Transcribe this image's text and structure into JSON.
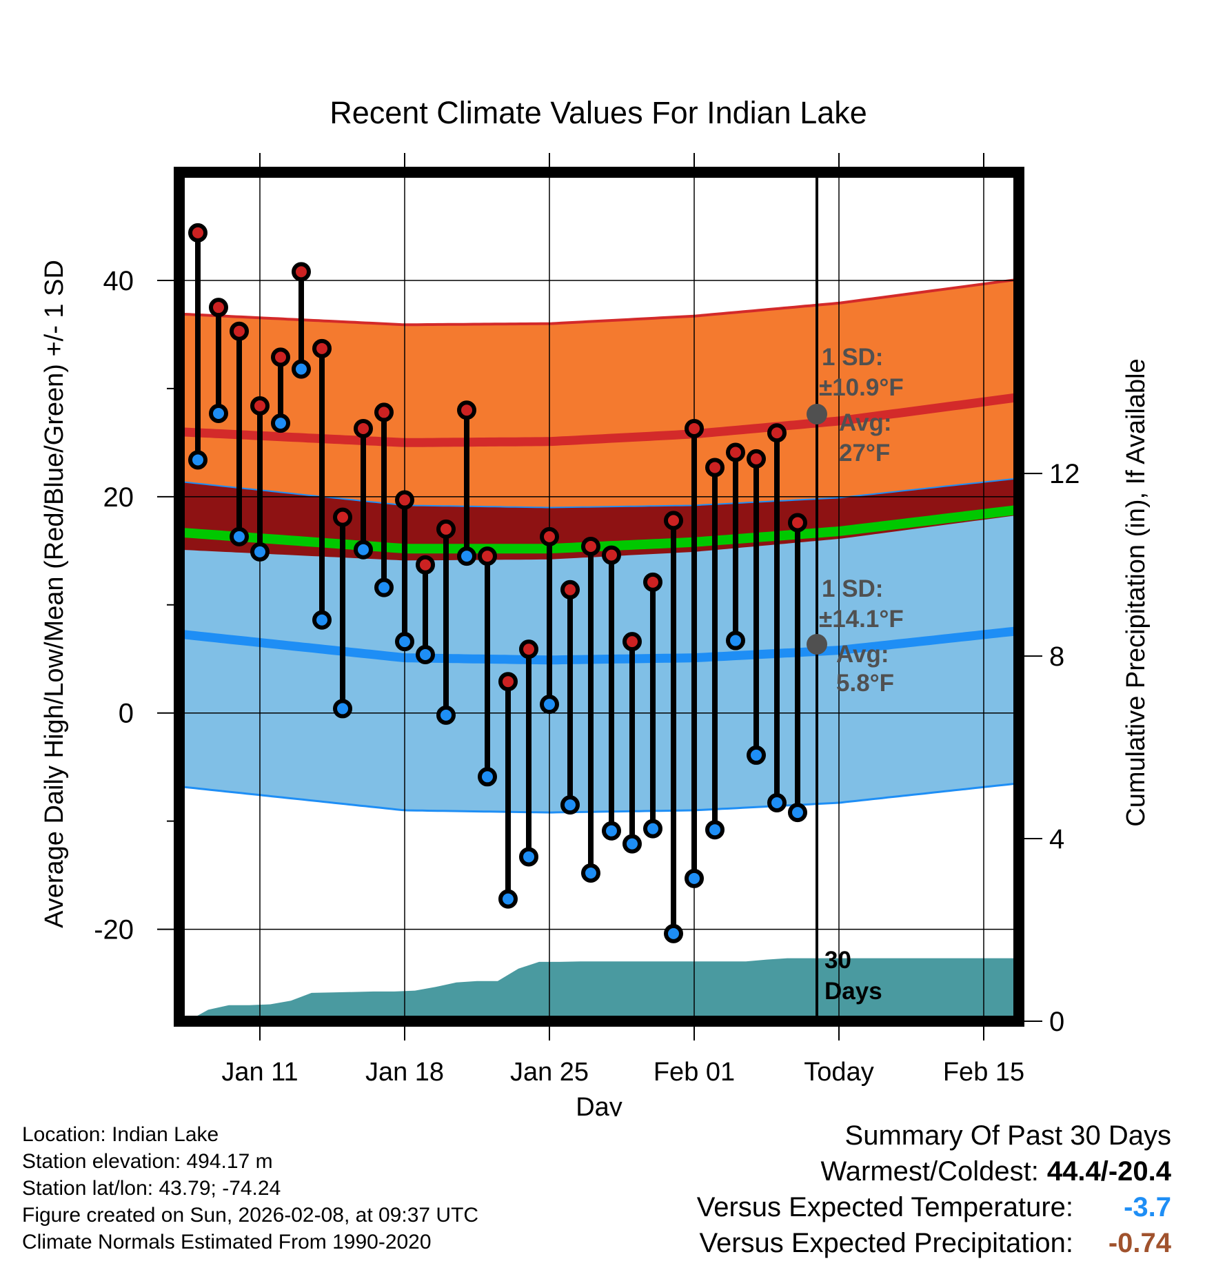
{
  "chart_data": {
    "type": "line",
    "title": "Recent Climate Values For Indian Lake",
    "xlabel": "Day",
    "ylabel_left": "Average Daily High/Low/Mean (Red/Blue/Green) +/- 1 SD",
    "ylabel_right": "Cumulative Precipitation (in), If Available",
    "x_tick_labels": [
      {
        "day": 11,
        "label": "Jan 11"
      },
      {
        "day": 18,
        "label": "Jan 18"
      },
      {
        "day": 25,
        "label": "Jan 25"
      },
      {
        "day": 32,
        "label": "Feb 01"
      },
      {
        "day": 39,
        "label": "Today"
      },
      {
        "day": 46,
        "label": "Feb 15"
      }
    ],
    "xlim": [
      7.1,
      47.7
    ],
    "today_day": 39,
    "y_left_ticks": [
      40,
      20,
      0,
      -20
    ],
    "y_left_minor_ticks": [
      30,
      10,
      -10
    ],
    "ylim_left": [
      -28.5,
      50
    ],
    "y_right_ticks": [
      12,
      8,
      4,
      0
    ],
    "ylim_right": [
      0,
      18.6
    ],
    "high_obs": [
      44.4,
      37.5,
      35.3,
      28.4,
      32.9,
      40.8,
      33.7,
      18.1,
      26.3,
      27.8,
      19.7,
      13.7,
      17.0,
      28.0,
      14.5,
      2.9,
      5.9,
      16.3,
      11.4,
      15.4,
      14.6,
      6.6,
      12.1,
      17.8,
      26.3,
      22.7,
      24.1,
      23.5,
      25.9,
      17.6
    ],
    "low_obs": [
      23.4,
      27.7,
      16.3,
      14.9,
      26.8,
      31.8,
      8.6,
      0.4,
      15.1,
      11.6,
      6.6,
      5.4,
      -0.2,
      14.5,
      -5.9,
      -17.2,
      -13.3,
      0.8,
      -8.5,
      -14.8,
      -10.9,
      -12.1,
      -10.7,
      -20.4,
      -15.3,
      -10.8,
      6.7,
      -3.9,
      -8.3,
      -9.2
    ],
    "normal_high": [
      {
        "day": 7.1,
        "value": 26.0
      },
      {
        "day": 18,
        "value": 25.0
      },
      {
        "day": 25,
        "value": 25.1
      },
      {
        "day": 32,
        "value": 25.8
      },
      {
        "day": 39,
        "value": 27.0
      },
      {
        "day": 47.7,
        "value": 29.2
      }
    ],
    "normal_high_sd": 10.9,
    "normal_low": [
      {
        "day": 7.1,
        "value": 7.3
      },
      {
        "day": 18,
        "value": 5.1
      },
      {
        "day": 25,
        "value": 4.9
      },
      {
        "day": 32,
        "value": 5.1
      },
      {
        "day": 39,
        "value": 5.8
      },
      {
        "day": 47.7,
        "value": 7.6
      }
    ],
    "normal_low_sd": 14.1,
    "normal_mean": [
      {
        "day": 7.1,
        "value": 16.7
      },
      {
        "day": 18,
        "value": 15.2
      },
      {
        "day": 25,
        "value": 15.2
      },
      {
        "day": 32,
        "value": 15.8
      },
      {
        "day": 39,
        "value": 16.8
      },
      {
        "day": 47.7,
        "value": 18.8
      }
    ],
    "precip_cumulative": [
      0.0,
      0.25,
      0.35,
      0.35,
      0.37,
      0.45,
      0.62,
      0.63,
      0.64,
      0.65,
      0.65,
      0.67,
      0.75,
      0.85,
      0.88,
      0.88,
      1.15,
      1.3,
      1.3,
      1.31,
      1.31,
      1.31,
      1.31,
      1.31,
      1.31,
      1.31,
      1.31,
      1.31,
      1.35,
      1.38,
      1.38
    ],
    "annotations": {
      "high_sd_label": "1 SD:",
      "high_sd_value": "±10.9°F",
      "high_avg_label": "Avg:",
      "high_avg_value": "27°F",
      "low_sd_label": "1 SD:",
      "low_sd_value": "±14.1°F",
      "low_avg_label": "Avg:",
      "low_avg_value": "5.8°F",
      "days_label_1": "30",
      "days_label_2": "Days"
    },
    "colors": {
      "high_band": "#f47a2f",
      "high_line": "#d32a2a",
      "low_band": "#80bfe6",
      "low_line": "#1e8ef5",
      "overlap_band": "#8e1213",
      "mean_line": "#00c800",
      "precip_fill": "#4a9aa0",
      "high_marker": "#cc2222",
      "low_marker": "#1e8ef5",
      "annotation_text": "#505050",
      "frame": "#000000"
    }
  },
  "info": {
    "location": "Location: Indian Lake",
    "elevation": "Station elevation: 494.17 m",
    "latlon": "Station lat/lon: 43.79; -74.24",
    "created": "Figure created on Sun, 2026-02-08, at 09:37 UTC",
    "normals": "Climate Normals Estimated From 1990-2020"
  },
  "summary": {
    "title": "Summary Of Past 30 Days",
    "warm_cold_label": "Warmest/Coldest:",
    "warm_cold_value": "44.4/-20.4",
    "temp_label": "Versus Expected Temperature:",
    "temp_value": "-3.7",
    "temp_color": "#1e8ef5",
    "precip_label": "Versus Expected Precipitation:",
    "precip_value": "-0.74",
    "precip_color": "#a0522d"
  }
}
